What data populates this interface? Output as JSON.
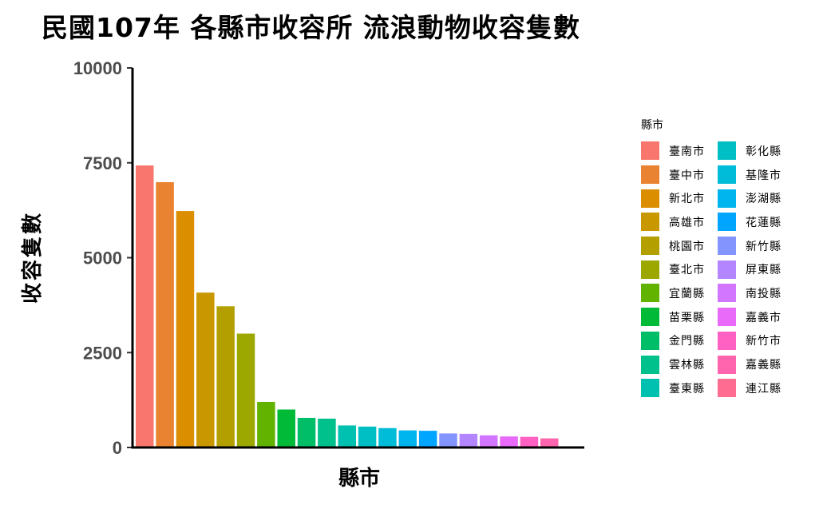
{
  "chart_data": {
    "type": "bar",
    "title": "民國107年 各縣市收容所 流浪動物收容隻數",
    "xlabel": "縣市",
    "ylabel": "收容隻數",
    "ylim": [
      0,
      10000
    ],
    "yticks": [
      0,
      2500,
      5000,
      7500,
      10000
    ],
    "ytick_labels": [
      "0",
      "2500",
      "5000",
      "7500",
      "10000"
    ],
    "x_ticks_shown": false,
    "grid": false,
    "legend": {
      "title": "縣市",
      "position": "right"
    },
    "categories": [
      "臺南市",
      "臺中市",
      "新北市",
      "高雄市",
      "桃園市",
      "臺北市",
      "宜蘭縣",
      "苗栗縣",
      "金門縣",
      "雲林縣",
      "臺東縣",
      "彰化縣",
      "基隆市",
      "澎湖縣",
      "花蓮縣",
      "新竹縣",
      "屏東縣",
      "南投縣",
      "嘉義市",
      "新竹市",
      "嘉義縣",
      "連江縣"
    ],
    "values": [
      7430,
      6990,
      6230,
      4080,
      3720,
      3000,
      1200,
      1000,
      780,
      760,
      580,
      550,
      510,
      450,
      440,
      370,
      360,
      320,
      290,
      280,
      240,
      0
    ],
    "colors": [
      "#F8766D",
      "#EA8331",
      "#DB8E00",
      "#C99800",
      "#B3A000",
      "#9CA700",
      "#62B200",
      "#00BA38",
      "#00BE67",
      "#00C08B",
      "#00C0AF",
      "#00BFC4",
      "#00BCD8",
      "#00B5EE",
      "#00A5FF",
      "#8494FF",
      "#B385FF",
      "#D376FF",
      "#E96AF8",
      "#FF61C3",
      "#FF65AE",
      "#FF6C91"
    ]
  }
}
